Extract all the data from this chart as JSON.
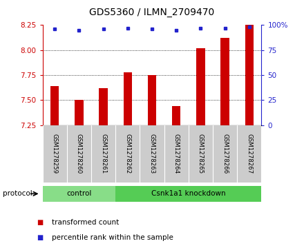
{
  "title": "GDS5360 / ILMN_2709470",
  "samples": [
    "GSM1278259",
    "GSM1278260",
    "GSM1278261",
    "GSM1278262",
    "GSM1278263",
    "GSM1278264",
    "GSM1278265",
    "GSM1278266",
    "GSM1278267"
  ],
  "transformed_counts": [
    7.64,
    7.5,
    7.62,
    7.78,
    7.75,
    7.44,
    8.02,
    8.12,
    8.25
  ],
  "percentile_ranks": [
    96,
    95,
    96,
    97,
    96,
    95,
    97,
    97,
    98
  ],
  "ylim_left": [
    7.25,
    8.25
  ],
  "yticks_left": [
    7.25,
    7.5,
    7.75,
    8.0,
    8.25
  ],
  "yticks_right": [
    0,
    25,
    50,
    75,
    100
  ],
  "ylim_right": [
    0,
    100
  ],
  "bar_color": "#cc0000",
  "marker_color": "#2222cc",
  "groups": [
    {
      "label": "control",
      "start": 0,
      "end": 2,
      "color": "#88dd88"
    },
    {
      "label": "Csnk1a1 knockdown",
      "start": 3,
      "end": 8,
      "color": "#55cc55"
    }
  ],
  "protocol_label": "protocol",
  "legend_bar_label": "transformed count",
  "legend_marker_label": "percentile rank within the sample",
  "background_color": "#ffffff",
  "plot_bg_color": "#ffffff",
  "tick_label_color_left": "#cc0000",
  "tick_label_color_right": "#2222cc",
  "sample_bg_color": "#cccccc",
  "bar_width": 0.35
}
